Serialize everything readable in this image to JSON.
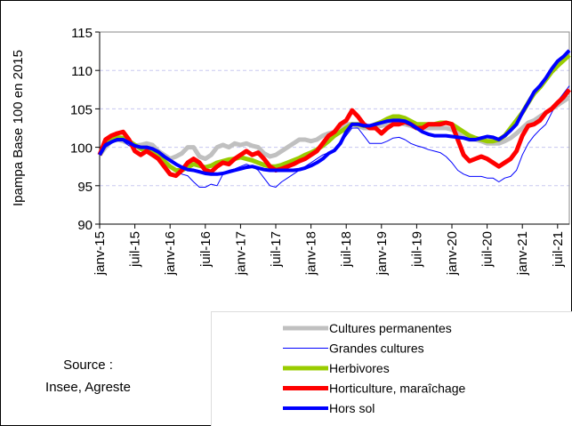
{
  "chart_data": {
    "type": "line",
    "ylabel": "Ipampa Base 100 en 2015",
    "source": [
      "Source :",
      "Insee, Agreste"
    ],
    "categories": [
      "janv-15",
      null,
      null,
      null,
      null,
      null,
      "juil-15",
      null,
      null,
      null,
      null,
      null,
      "janv-16",
      null,
      null,
      null,
      null,
      null,
      "juil-16",
      null,
      null,
      null,
      null,
      null,
      "janv-17",
      null,
      null,
      null,
      null,
      null,
      "juil-17",
      null,
      null,
      null,
      null,
      null,
      "janv-18",
      null,
      null,
      null,
      null,
      null,
      "juil-18",
      null,
      null,
      null,
      null,
      null,
      "janv-19",
      null,
      null,
      null,
      null,
      null,
      "juil-19",
      null,
      null,
      null,
      null,
      null,
      "janv-20",
      null,
      null,
      null,
      null,
      null,
      "juil-20",
      null,
      null,
      null,
      null,
      null,
      "janv-21",
      null,
      null,
      null,
      null,
      null,
      "juil-21",
      null,
      null
    ],
    "ylim": [
      90,
      115
    ],
    "yticks": [
      90,
      95,
      100,
      105,
      110,
      115
    ],
    "grid": true,
    "series": [
      {
        "name": "Cultures permanentes",
        "color": "#c0c0c0",
        "width": 5,
        "values": [
          99,
          100,
          100.8,
          101,
          100.8,
          100.5,
          100.2,
          100.3,
          100.5,
          100.3,
          99.5,
          99,
          98.5,
          98.8,
          99.2,
          100,
          100,
          98.8,
          98.5,
          99,
          100,
          100.3,
          100,
          100.5,
          100.3,
          100.5,
          100.2,
          100,
          99.2,
          98.8,
          99,
          99.5,
          100,
          100.5,
          101,
          101,
          100.8,
          101,
          101.5,
          101.8,
          102,
          102.5,
          103,
          103,
          102.8,
          102.5,
          102.5,
          102.7,
          102.8,
          103,
          103.2,
          103.2,
          103,
          102.8,
          102.5,
          102.5,
          102.5,
          102.5,
          102.5,
          102.5,
          102.3,
          101.8,
          101.3,
          101,
          101,
          100.8,
          100.5,
          100.5,
          100.5,
          100.8,
          101.2,
          101.8,
          102.5,
          103.2,
          103.5,
          104,
          104.5,
          105,
          105.5,
          106,
          106.5
        ]
      },
      {
        "name": "Grandes cultures",
        "color": "#0000ff",
        "width": 1,
        "values": [
          99,
          100,
          100.5,
          101,
          100.8,
          100.2,
          100,
          100,
          99.8,
          99.5,
          99,
          98.5,
          97.5,
          97,
          96.5,
          96.3,
          95.5,
          94.8,
          94.8,
          95.2,
          95,
          96.5,
          97,
          97.2,
          97.5,
          97.8,
          97.5,
          97,
          96,
          95,
          94.8,
          95.5,
          96,
          96.5,
          97,
          97.5,
          98,
          98.5,
          99,
          99.3,
          99.5,
          100.5,
          101.5,
          102.5,
          102.5,
          101.5,
          100.5,
          100.5,
          100.5,
          100.8,
          101.2,
          101.3,
          101,
          100.5,
          100.2,
          100,
          99.7,
          99.5,
          99.3,
          98.8,
          98,
          97,
          96.5,
          96.2,
          96.2,
          96.2,
          96,
          96,
          95.5,
          96,
          96.2,
          97,
          99,
          100.5,
          101.5,
          102.3,
          103,
          104.5,
          106,
          107,
          108
        ]
      },
      {
        "name": "Herbivores",
        "color": "#99cc00",
        "width": 5,
        "values": [
          99,
          100.5,
          101,
          101.3,
          101.2,
          100.8,
          100.3,
          99.8,
          99.5,
          99.3,
          99,
          98.2,
          97.5,
          97,
          97,
          97.4,
          97.8,
          97.6,
          97.4,
          97.6,
          98,
          98.2,
          98.4,
          98.5,
          98.7,
          98.5,
          98.3,
          98,
          97.7,
          97.5,
          97.5,
          97.7,
          98,
          98.3,
          98.6,
          99,
          99.3,
          99.7,
          100.2,
          100.8,
          101.5,
          102,
          102.5,
          103,
          103,
          102.8,
          102.7,
          103,
          103.3,
          103.7,
          104,
          104,
          103.8,
          103.4,
          103,
          103,
          103,
          103,
          103.2,
          103.2,
          103,
          102.5,
          102,
          101.5,
          101.2,
          101,
          100.8,
          100.8,
          101,
          101.5,
          102.5,
          103.5,
          104.5,
          105.8,
          107,
          107.8,
          108.8,
          109.8,
          110.6,
          111.3,
          112
        ]
      },
      {
        "name": "Horticulture, maraîchage",
        "color": "#ff0000",
        "width": 5,
        "values": [
          99,
          101,
          101.5,
          101.8,
          102,
          101,
          99.5,
          99,
          99.5,
          99,
          98.5,
          97.5,
          96.5,
          96.3,
          97,
          98,
          98.5,
          98,
          97,
          96.8,
          97.5,
          98,
          97.8,
          98.5,
          99,
          99.5,
          99,
          99.3,
          98.5,
          97.5,
          97,
          97.2,
          97.5,
          97.8,
          98.2,
          98.5,
          99,
          99.5,
          100.5,
          101.5,
          102,
          103,
          103.5,
          104.8,
          104,
          103,
          102.5,
          102.5,
          101.8,
          102.5,
          103,
          103,
          103.3,
          103,
          102.5,
          102.5,
          103,
          103,
          103,
          103.2,
          103,
          101,
          99,
          98.2,
          98.5,
          98.8,
          98.5,
          98,
          97.5,
          98,
          98.5,
          99.5,
          101.5,
          102.8,
          103,
          103.5,
          104.5,
          105,
          105.8,
          106.5,
          107.5
        ]
      },
      {
        "name": "Hors sol",
        "color": "#0000ff",
        "width": 4,
        "values": [
          99,
          100.3,
          100.7,
          101,
          101,
          100.6,
          100.2,
          100,
          100,
          99.8,
          99.4,
          98.8,
          98.3,
          97.8,
          97.4,
          97.1,
          97,
          96.8,
          96.6,
          96.5,
          96.5,
          96.6,
          96.8,
          97,
          97.2,
          97.4,
          97.5,
          97.3,
          97.1,
          97,
          97,
          97,
          97,
          97,
          97.1,
          97.3,
          97.6,
          98,
          98.5,
          99.2,
          99.6,
          100.5,
          102,
          103,
          103,
          102.8,
          102.8,
          103,
          103.2,
          103.4,
          103.5,
          103.5,
          103.4,
          103,
          102.5,
          102,
          101.7,
          101.5,
          101.5,
          101.5,
          101.4,
          101.3,
          101.2,
          101,
          101,
          101.2,
          101.4,
          101.3,
          101,
          101.5,
          102.2,
          103,
          104.5,
          105.8,
          107.2,
          108,
          109,
          110.2,
          111.2,
          111.8,
          112.6
        ]
      }
    ]
  }
}
